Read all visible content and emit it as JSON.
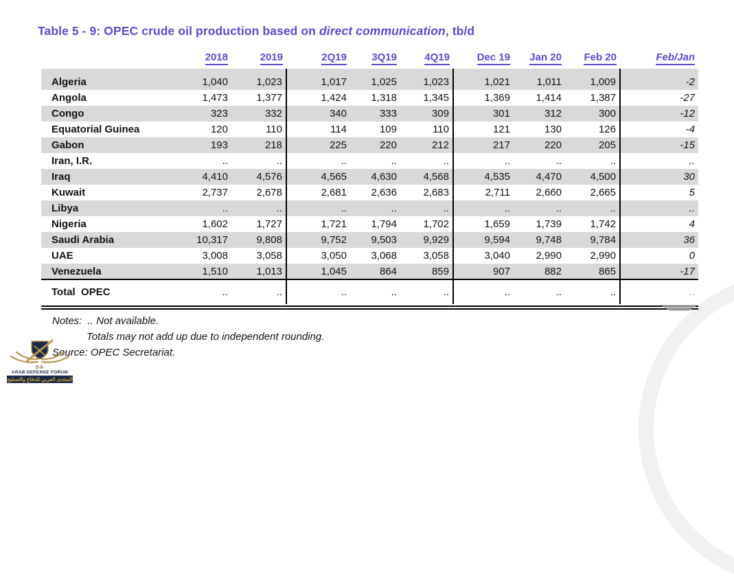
{
  "title": {
    "text_before": "Table 5 - 9: OPEC crude oil production based on ",
    "text_italic": "direct communication",
    "text_after": ", tb/d"
  },
  "table": {
    "col_headers": [
      "2018",
      "2019",
      "2Q19",
      "3Q19",
      "4Q19",
      "Dec 19",
      "Jan 20",
      "Feb 20",
      "Feb/Jan"
    ],
    "rows": [
      {
        "country": "Algeria",
        "values": [
          "1,040",
          "1,023",
          "1,017",
          "1,025",
          "1,023",
          "1,021",
          "1,011",
          "1,009",
          "-2"
        ]
      },
      {
        "country": "Angola",
        "values": [
          "1,473",
          "1,377",
          "1,424",
          "1,318",
          "1,345",
          "1,369",
          "1,414",
          "1,387",
          "-27"
        ]
      },
      {
        "country": "Congo",
        "values": [
          "323",
          "332",
          "340",
          "333",
          "309",
          "301",
          "312",
          "300",
          "-12"
        ]
      },
      {
        "country": "Equatorial Guinea",
        "values": [
          "120",
          "110",
          "114",
          "109",
          "110",
          "121",
          "130",
          "126",
          "-4"
        ]
      },
      {
        "country": "Gabon",
        "values": [
          "193",
          "218",
          "225",
          "220",
          "212",
          "217",
          "220",
          "205",
          "-15"
        ]
      },
      {
        "country": "Iran, I.R.",
        "values": [
          "..",
          "..",
          "..",
          "..",
          "..",
          "..",
          "..",
          "..",
          ".."
        ]
      },
      {
        "country": "Iraq",
        "values": [
          "4,410",
          "4,576",
          "4,565",
          "4,630",
          "4,568",
          "4,535",
          "4,470",
          "4,500",
          "30"
        ]
      },
      {
        "country": "Kuwait",
        "values": [
          "2,737",
          "2,678",
          "2,681",
          "2,636",
          "2,683",
          "2,711",
          "2,660",
          "2,665",
          "5"
        ]
      },
      {
        "country": "Libya",
        "values": [
          "..",
          "..",
          "..",
          "..",
          "..",
          "..",
          "..",
          "..",
          ".."
        ]
      },
      {
        "country": "Nigeria",
        "values": [
          "1,602",
          "1,727",
          "1,721",
          "1,794",
          "1,702",
          "1,659",
          "1,739",
          "1,742",
          "4"
        ]
      },
      {
        "country": "Saudi Arabia",
        "values": [
          "10,317",
          "9,808",
          "9,752",
          "9,503",
          "9,929",
          "9,594",
          "9,748",
          "9,784",
          "36"
        ]
      },
      {
        "country": "UAE",
        "values": [
          "3,008",
          "3,058",
          "3,050",
          "3,068",
          "3,058",
          "3,040",
          "2,990",
          "2,990",
          "0"
        ]
      },
      {
        "country": "Venezuela",
        "values": [
          "1,510",
          "1,013",
          "1,045",
          "864",
          "859",
          "907",
          "882",
          "865",
          "-17"
        ]
      }
    ],
    "total_row": {
      "label": "Total  OPEC",
      "values": [
        "..",
        "..",
        "..",
        "..",
        "..",
        "..",
        "..",
        "..",
        ".."
      ]
    }
  },
  "notes": {
    "line1": "Notes:  .. Not available.",
    "line2": "Totals may not add up due to independent rounding.",
    "line3": "Source: OPEC Secretariat."
  },
  "logo": {
    "initials": "DA",
    "name": "ARAB DEFENSE FORUM",
    "arabic": "المنتدى العربي للدفاع والتسليح"
  },
  "colors": {
    "accent_blue": "#5e49d3",
    "row_stripe": "#d9d9d9",
    "logo_navy": "#1b2a4a",
    "logo_gold": "#c9a227"
  }
}
